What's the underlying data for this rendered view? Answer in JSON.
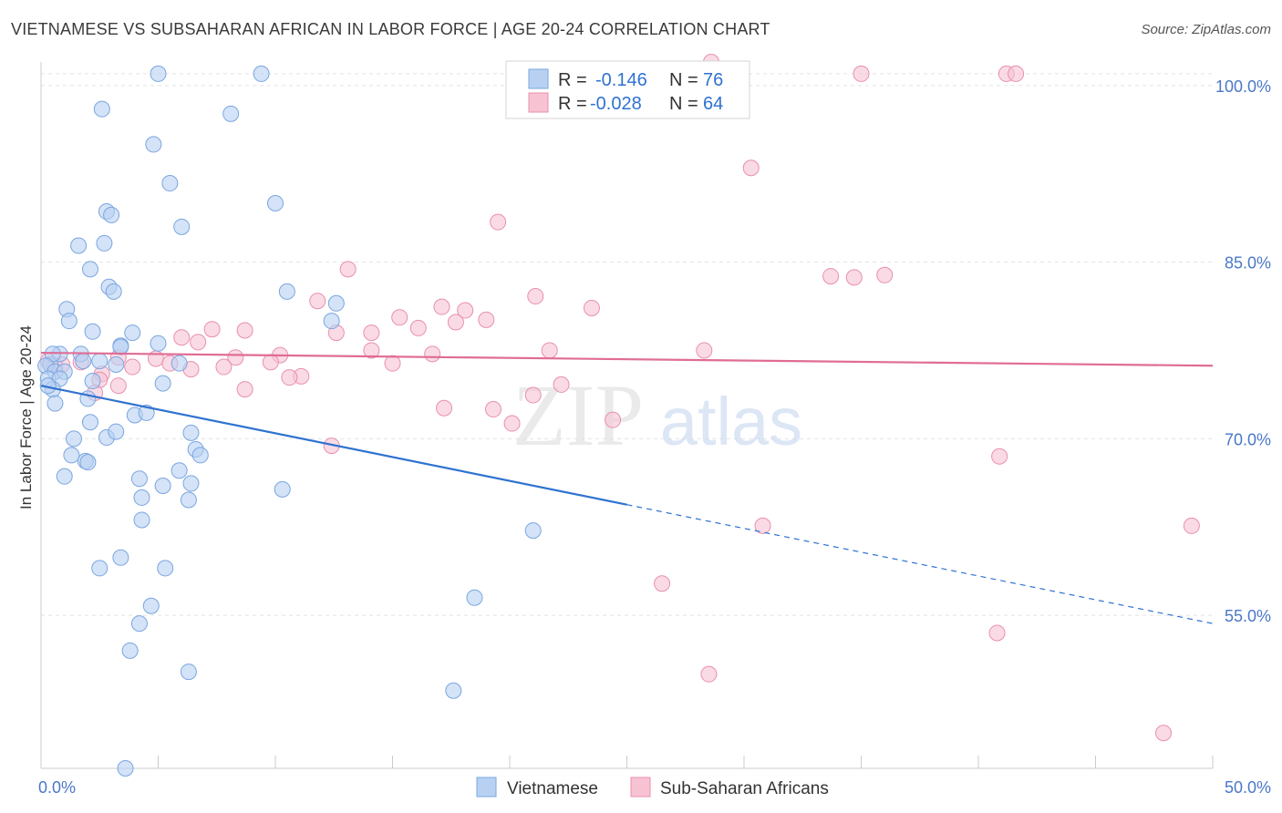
{
  "header": {
    "title": "VIETNAMESE VS SUBSAHARAN AFRICAN IN LABOR FORCE | AGE 20-24 CORRELATION CHART",
    "source": "Source: ZipAtlas.com"
  },
  "watermark": {
    "zip": "ZIP",
    "atlas": "atlas"
  },
  "colors": {
    "blue_fill": "#b8d1f2",
    "blue_stroke": "#7aa6e0",
    "blue_line": "#2f72d0",
    "pink_fill": "#f7c3d3",
    "pink_stroke": "#e98fae",
    "pink_line": "#e06c96",
    "tick_text": "#4a78c8",
    "grid": "#e4e4e4"
  },
  "chart_data": {
    "type": "scatter",
    "title": "VIETNAMESE VS SUBSAHARAN AFRICAN IN LABOR FORCE | AGE 20-24 CORRELATION CHART",
    "xlabel": "",
    "ylabel": "In Labor Force | Age 20-24",
    "xlim": [
      0,
      50
    ],
    "ylim": [
      42,
      102
    ],
    "x_tick_labels": [
      "0.0%",
      "50.0%"
    ],
    "y_ticks": [
      55,
      70,
      85,
      100
    ],
    "y_tick_labels": [
      "55.0%",
      "70.0%",
      "85.0%",
      "100.0%"
    ],
    "grid": true,
    "legend_top": {
      "rows": [
        {
          "r_label": "R = ",
          "r_value": "-0.146",
          "n_label": "N = ",
          "n_value": "76"
        },
        {
          "r_label": "R = ",
          "r_value": "-0.028",
          "n_label": "N = ",
          "n_value": "64"
        }
      ]
    },
    "series": [
      {
        "name": "Vietnamese",
        "trend": {
          "x0": 0,
          "y0": 74.5,
          "x1": 25,
          "y1": 64.4,
          "x_end": 50,
          "y_end": 54.3
        },
        "points": [
          [
            5,
            101
          ],
          [
            9.4,
            101
          ],
          [
            2.6,
            98
          ],
          [
            8.1,
            97.6
          ],
          [
            4.8,
            95
          ],
          [
            5.5,
            91.7
          ],
          [
            10,
            90
          ],
          [
            2.8,
            89.3
          ],
          [
            3,
            89
          ],
          [
            6,
            88
          ],
          [
            1.6,
            86.4
          ],
          [
            2.7,
            86.6
          ],
          [
            2.1,
            84.4
          ],
          [
            2.9,
            82.9
          ],
          [
            3.1,
            82.5
          ],
          [
            10.5,
            82.5
          ],
          [
            12.6,
            81.5
          ],
          [
            1.1,
            81
          ],
          [
            1.2,
            80
          ],
          [
            12.4,
            80
          ],
          [
            2.2,
            79.1
          ],
          [
            3.9,
            79
          ],
          [
            5,
            78.1
          ],
          [
            3.4,
            77.9
          ],
          [
            3.4,
            77.8
          ],
          [
            0.8,
            77.2
          ],
          [
            1.7,
            77.2
          ],
          [
            0.4,
            76.3
          ],
          [
            0.5,
            77.2
          ],
          [
            1.8,
            76.6
          ],
          [
            2.5,
            76.6
          ],
          [
            3.2,
            76.3
          ],
          [
            5.9,
            76.4
          ],
          [
            0.2,
            76.2
          ],
          [
            0.6,
            75.7
          ],
          [
            1,
            75.7
          ],
          [
            0.3,
            75.1
          ],
          [
            0.8,
            75.1
          ],
          [
            5.2,
            74.7
          ],
          [
            0.5,
            74.2
          ],
          [
            2,
            73.4
          ],
          [
            0.6,
            73
          ],
          [
            4,
            72
          ],
          [
            4.5,
            72.2
          ],
          [
            2.1,
            71.4
          ],
          [
            6.4,
            70.5
          ],
          [
            1.4,
            70
          ],
          [
            2.8,
            70.1
          ],
          [
            3.2,
            70.6
          ],
          [
            6.6,
            69.1
          ],
          [
            1.3,
            68.6
          ],
          [
            1.9,
            68.1
          ],
          [
            2,
            68
          ],
          [
            5.9,
            67.3
          ],
          [
            6.8,
            68.6
          ],
          [
            1,
            66.8
          ],
          [
            4.2,
            66.6
          ],
          [
            5.2,
            66
          ],
          [
            6.4,
            66.2
          ],
          [
            10.3,
            65.7
          ],
          [
            4.3,
            65
          ],
          [
            6.3,
            64.8
          ],
          [
            4.3,
            63.1
          ],
          [
            21,
            62.2
          ],
          [
            3.4,
            59.9
          ],
          [
            2.5,
            59
          ],
          [
            5.3,
            59
          ],
          [
            18.5,
            56.5
          ],
          [
            4.7,
            55.8
          ],
          [
            4.2,
            54.3
          ],
          [
            3.8,
            52
          ],
          [
            6.3,
            50.2
          ],
          [
            17.6,
            48.6
          ],
          [
            3.6,
            42
          ],
          [
            2.2,
            74.9
          ],
          [
            0.3,
            74.5
          ]
        ]
      },
      {
        "name": "Sub-Saharan Africans",
        "trend": {
          "x0": 0,
          "y0": 77.3,
          "x1": 50,
          "y1": 76.2
        },
        "points": [
          [
            28.6,
            102
          ],
          [
            35,
            101
          ],
          [
            41.2,
            101
          ],
          [
            41.6,
            101
          ],
          [
            30.3,
            93
          ],
          [
            19.5,
            88.4
          ],
          [
            13.1,
            84.4
          ],
          [
            33.7,
            83.8
          ],
          [
            34.7,
            83.7
          ],
          [
            36,
            83.9
          ],
          [
            21.1,
            82.1
          ],
          [
            11.8,
            81.7
          ],
          [
            17.1,
            81.2
          ],
          [
            23.5,
            81.1
          ],
          [
            18.1,
            80.9
          ],
          [
            15.3,
            80.3
          ],
          [
            17.7,
            79.9
          ],
          [
            19,
            80.1
          ],
          [
            7.3,
            79.3
          ],
          [
            8.7,
            79.2
          ],
          [
            12.6,
            79
          ],
          [
            14.1,
            79
          ],
          [
            16.1,
            79.4
          ],
          [
            6,
            78.6
          ],
          [
            6.7,
            78.2
          ],
          [
            14.1,
            77.5
          ],
          [
            21.7,
            77.5
          ],
          [
            28.3,
            77.5
          ],
          [
            16.7,
            77.2
          ],
          [
            10.2,
            77.1
          ],
          [
            8.3,
            76.9
          ],
          [
            3.3,
            76.9
          ],
          [
            4.9,
            76.8
          ],
          [
            5.5,
            76.4
          ],
          [
            1.7,
            76.5
          ],
          [
            0.3,
            76.6
          ],
          [
            0.6,
            76.2
          ],
          [
            0.9,
            76.3
          ],
          [
            2.6,
            75.5
          ],
          [
            9.8,
            76.5
          ],
          [
            15,
            76.4
          ],
          [
            3.9,
            76.1
          ],
          [
            6.4,
            75.9
          ],
          [
            7.8,
            76.1
          ],
          [
            2.5,
            75
          ],
          [
            11.1,
            75.3
          ],
          [
            10.6,
            75.2
          ],
          [
            3.3,
            74.5
          ],
          [
            22.2,
            74.6
          ],
          [
            8.7,
            74.2
          ],
          [
            2.3,
            73.9
          ],
          [
            21,
            73.7
          ],
          [
            17.2,
            72.6
          ],
          [
            19.3,
            72.5
          ],
          [
            24.4,
            71.6
          ],
          [
            20.1,
            71.3
          ],
          [
            12.4,
            69.4
          ],
          [
            40.9,
            68.5
          ],
          [
            49.1,
            62.6
          ],
          [
            30.8,
            62.6
          ],
          [
            26.5,
            57.7
          ],
          [
            28.5,
            50
          ],
          [
            40.8,
            53.5
          ],
          [
            47.9,
            45
          ]
        ]
      }
    ]
  },
  "bottom_legend": {
    "items": [
      "Vietnamese",
      "Sub-Saharan Africans"
    ]
  }
}
